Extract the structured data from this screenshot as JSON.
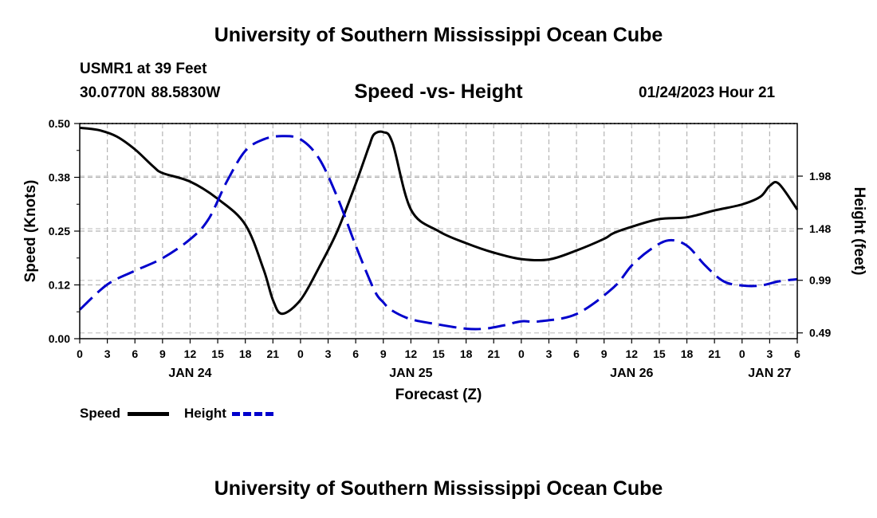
{
  "header": {
    "title": "University of Southern Mississippi Ocean Cube",
    "station": "USMR1 at 39 Feet",
    "coordinates": "30.0770N  88.5830W",
    "subtitle": "Speed -vs- Height",
    "timestamp": "01/24/2023 Hour 21"
  },
  "footer": {
    "title": "University of Southern Mississippi Ocean Cube"
  },
  "legend": {
    "speed_label": "Speed",
    "height_label": "Height"
  },
  "chart_data": {
    "type": "line",
    "xlabel": "Forecast (Z)",
    "ylabel": "Speed (Knots)",
    "y2label": "Height (feet)",
    "x_unit": "hours from JAN 24 00Z",
    "xlim": [
      0,
      78
    ],
    "ylim": [
      0.0,
      0.5
    ],
    "y2lim": [
      0.435,
      2.48
    ],
    "x_tick_labels": [
      "0",
      "3",
      "6",
      "9",
      "12",
      "15",
      "18",
      "21",
      "0",
      "3",
      "6",
      "9",
      "12",
      "15",
      "18",
      "21",
      "0",
      "3",
      "6",
      "9",
      "12",
      "15",
      "18",
      "21",
      "0",
      "3",
      "6"
    ],
    "y_ticks": [
      0.0,
      0.125,
      0.25,
      0.375,
      0.5
    ],
    "y_tick_labels": [
      "0.00",
      "0.12",
      "0.25",
      "0.38",
      "0.50"
    ],
    "y2_ticks": [
      0.49,
      0.99,
      1.48,
      1.98
    ],
    "y2_tick_labels": [
      "0.49",
      "0.99",
      "1.48",
      "1.98"
    ],
    "date_labels": [
      {
        "x": 12,
        "label": "JAN 24"
      },
      {
        "x": 36,
        "label": "JAN 25"
      },
      {
        "x": 60,
        "label": "JAN 26"
      },
      {
        "x": 75,
        "label": "JAN 27"
      }
    ],
    "series": [
      {
        "name": "Speed",
        "axis": "left",
        "color": "#000000",
        "style": "solid",
        "x": [
          0,
          2,
          4,
          6,
          8,
          9,
          12,
          15,
          18,
          20,
          21,
          22,
          24,
          26,
          28,
          30,
          31,
          31.5,
          32,
          33,
          34,
          36,
          39,
          42,
          45,
          48,
          51,
          54,
          57,
          58,
          60,
          63,
          66,
          69,
          72,
          74,
          75,
          76,
          78
        ],
        "y": [
          0.49,
          0.485,
          0.47,
          0.44,
          0.4,
          0.385,
          0.365,
          0.325,
          0.265,
          0.16,
          0.09,
          0.058,
          0.09,
          0.165,
          0.25,
          0.36,
          0.42,
          0.45,
          0.475,
          0.48,
          0.455,
          0.3,
          0.25,
          0.222,
          0.2,
          0.185,
          0.184,
          0.205,
          0.232,
          0.245,
          0.26,
          0.278,
          0.282,
          0.298,
          0.312,
          0.33,
          0.355,
          0.36,
          0.3
        ]
      },
      {
        "name": "Height",
        "axis": "right",
        "color": "#0000cc",
        "style": "dashed",
        "x": [
          0,
          3,
          6,
          9,
          12,
          14,
          16,
          18,
          20,
          22,
          24,
          26,
          28,
          30,
          32,
          33,
          34,
          36,
          39,
          42,
          44,
          46,
          48,
          50,
          54,
          58,
          60,
          62,
          64,
          66,
          68,
          70,
          72,
          74,
          76,
          78
        ],
        "y": [
          0.71,
          0.95,
          1.08,
          1.2,
          1.38,
          1.57,
          1.93,
          2.22,
          2.33,
          2.36,
          2.33,
          2.15,
          1.78,
          1.32,
          0.9,
          0.78,
          0.7,
          0.62,
          0.57,
          0.53,
          0.53,
          0.56,
          0.6,
          0.6,
          0.67,
          0.92,
          1.13,
          1.28,
          1.37,
          1.32,
          1.13,
          0.98,
          0.94,
          0.94,
          0.98,
          1.0
        ]
      }
    ]
  }
}
